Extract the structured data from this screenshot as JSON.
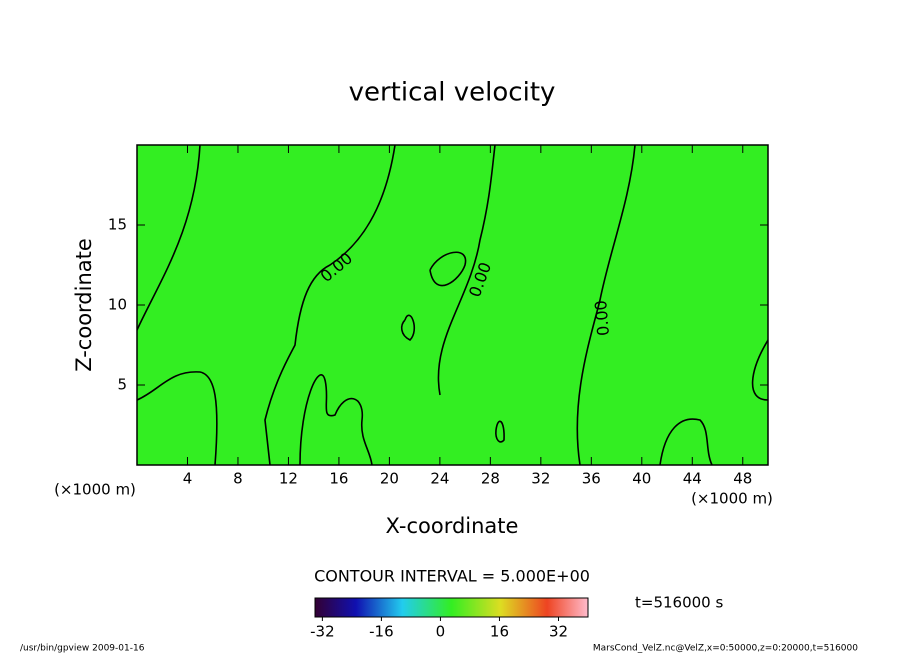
{
  "chart_data": {
    "type": "contour",
    "title": "vertical velocity",
    "x_label": "X-coordinate",
    "y_label": "Z-coordinate",
    "x_unit": "(×1000 m)",
    "xlim": [
      0,
      50
    ],
    "xticks": [
      4,
      8,
      12,
      16,
      20,
      24,
      28,
      32,
      36,
      40,
      44,
      48
    ],
    "ylim": [
      0,
      20
    ],
    "yticks": [
      5,
      10,
      15
    ],
    "field_color": "#33ee22",
    "contour_level": {
      "value": 0,
      "label": "0.00"
    },
    "contour_interval": "CONTOUR INTERVAL = 5.000E+00",
    "time_label": "t=516000 s",
    "colorbar": {
      "clim": [
        -34,
        40
      ],
      "ticks": [
        -32,
        -16,
        0,
        16,
        32
      ]
    },
    "footer_left": "/usr/bin/gpview   2009-01-16",
    "footer_right": "MarsCond_VelZ.nc@VelZ,x=0:50000,z=0:20000,t=516000"
  }
}
